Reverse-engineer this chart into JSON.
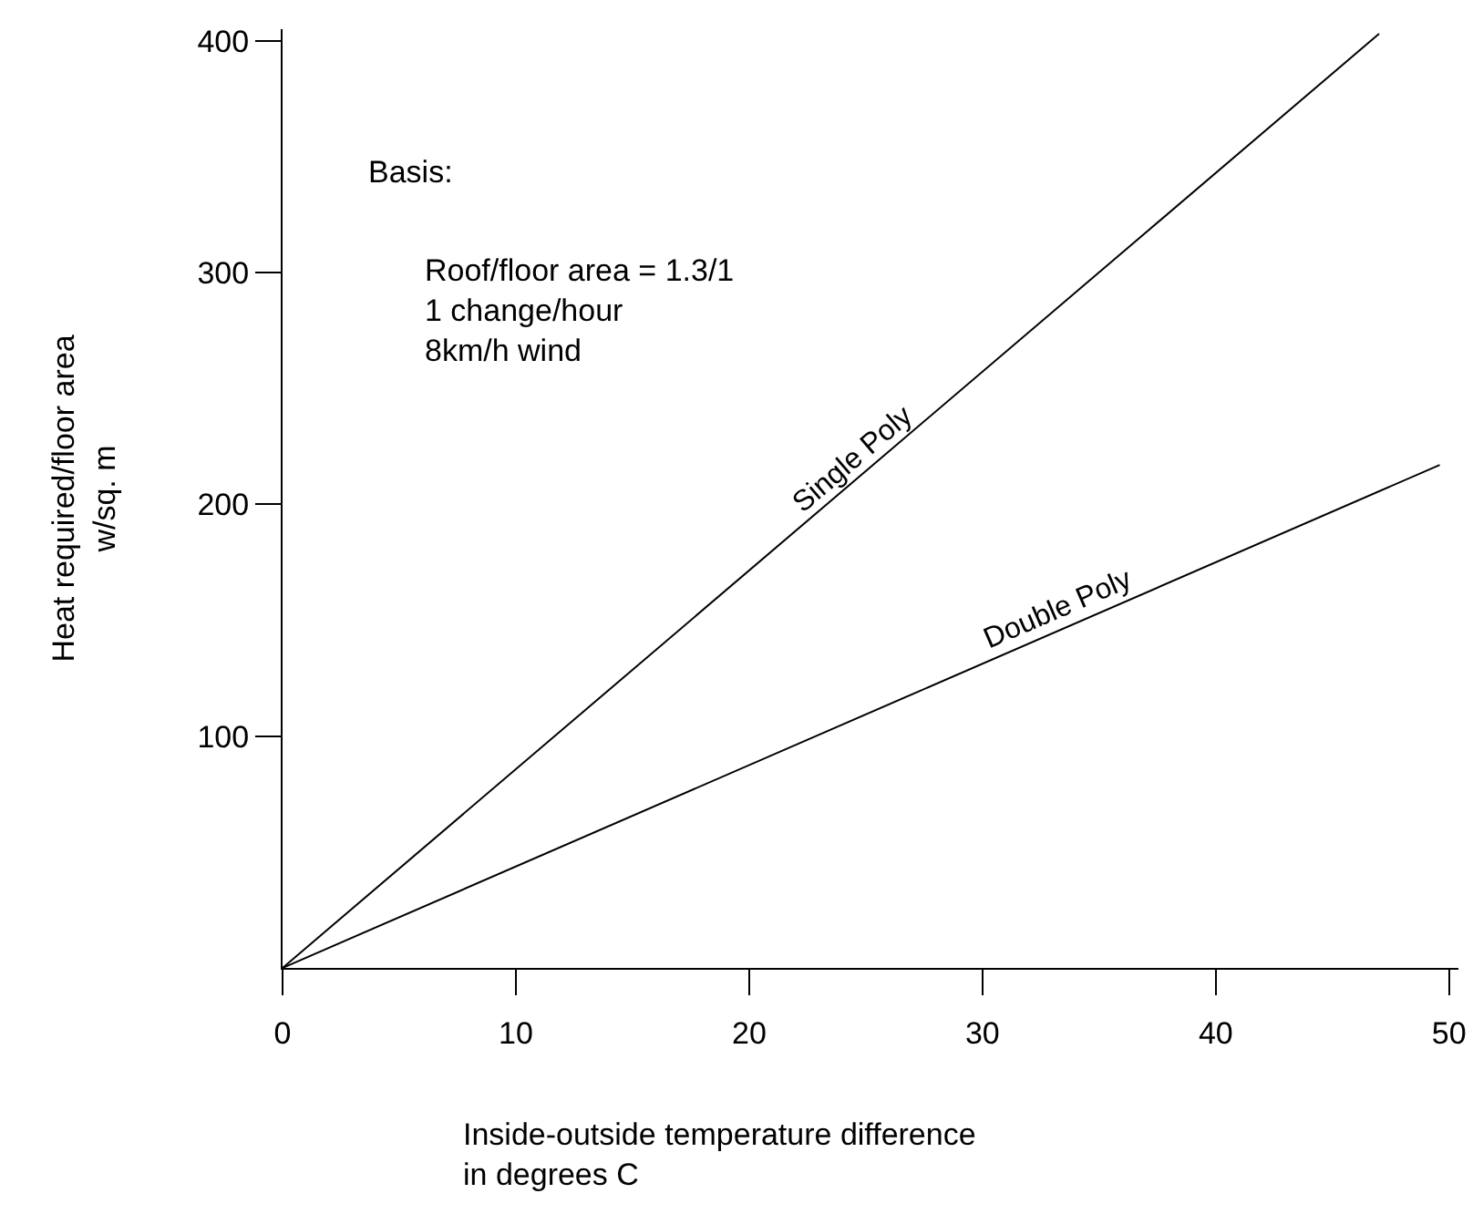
{
  "chart_data": {
    "type": "line",
    "xlabel": "Inside-outside temperature difference\nin degrees C",
    "ylabel": "Heat required/floor area\nw/sq. m",
    "series": [
      {
        "name": "Single Poly",
        "color": "#000000",
        "x": [
          0,
          47
        ],
        "values": [
          0,
          403
        ]
      },
      {
        "name": "Double Poly",
        "color": "#000000",
        "x": [
          0,
          49.6
        ],
        "values": [
          0,
          217
        ]
      }
    ],
    "xlim": [
      0,
      50.4
    ],
    "xticks": [
      0,
      10,
      20,
      30,
      40,
      50
    ],
    "ylim": [
      0,
      405
    ],
    "yticks": [
      100,
      200,
      300,
      400
    ],
    "grid": false,
    "legend": false,
    "marker": "none",
    "line_style": "solid",
    "annotations": [
      "Basis:",
      "Roof/floor area = 1.3/1\n1 change/hour\n8km/h wind"
    ]
  }
}
